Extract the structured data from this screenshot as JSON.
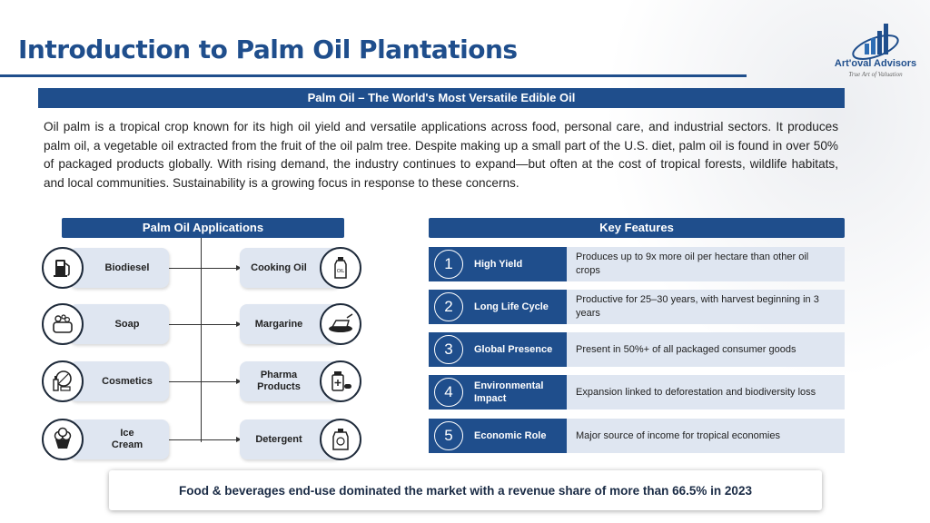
{
  "page": {
    "title": "Introduction to Palm Oil Plantations",
    "logo": {
      "name": "Art'oval Advisors",
      "tagline": "True Art of Valuation"
    }
  },
  "banner": "Palm Oil – The World's Most Versatile Edible Oil",
  "intro": "Oil palm is a tropical crop known for its high oil yield and versatile applications across food, personal care, and industrial sectors. It produces palm oil, a vegetable oil extracted from the fruit of the oil palm tree. Despite making up a small part of the U.S. diet, palm oil is found in over 50% of packaged products globally. With rising demand, the industry continues to expand—but often at the cost of tropical forests, wildlife habitats, and local communities. Sustainability is a growing focus in response to these concerns.",
  "applications": {
    "title": "Palm Oil Applications",
    "left": [
      {
        "label": "Biodiesel",
        "icon": "fuel-pump-icon"
      },
      {
        "label": "Soap",
        "icon": "soap-icon"
      },
      {
        "label": "Cosmetics",
        "icon": "cosmetics-icon"
      },
      {
        "label": "Ice Cream",
        "icon": "ice-cream-icon"
      }
    ],
    "right": [
      {
        "label": "Cooking Oil",
        "icon": "oil-bottle-icon"
      },
      {
        "label": "Margarine",
        "icon": "margarine-icon"
      },
      {
        "label": "Pharma Products",
        "icon": "pharma-icon"
      },
      {
        "label": "Detergent",
        "icon": "detergent-icon"
      }
    ]
  },
  "features": {
    "title": "Key Features",
    "items": [
      {
        "num": "1",
        "label": "High Yield",
        "desc": "Produces up to 9x more oil per hectare than other oil crops"
      },
      {
        "num": "2",
        "label": "Long Life Cycle",
        "desc": "Productive for 25–30 years, with harvest beginning in 3 years"
      },
      {
        "num": "3",
        "label": "Global Presence",
        "desc": "Present in 50%+ of all packaged consumer goods"
      },
      {
        "num": "4",
        "label": "Environmental Impact",
        "desc": "Expansion linked to deforestation and biodiversity loss"
      },
      {
        "num": "5",
        "label": "Economic Role",
        "desc": "Major source of income for tropical economies"
      }
    ]
  },
  "footer": "Food & beverages end-use dominated the market with a revenue share of more than 66.5% in 2023",
  "colors": {
    "primary": "#1f4e8c",
    "card": "#dfe6f1"
  }
}
